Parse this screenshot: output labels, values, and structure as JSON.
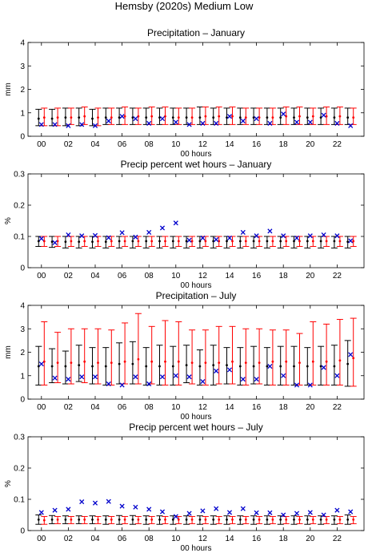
{
  "figure": {
    "title": "Hemsby (2020s) Medium Low"
  },
  "chart_data": [
    {
      "type": "errorbar",
      "title": "Precipitation – January",
      "xlabel": "00 hours",
      "ylabel": "mm",
      "xlim": [
        -1,
        24
      ],
      "ylim": [
        0,
        4
      ],
      "yticks": [
        0,
        1,
        2,
        3,
        4
      ],
      "yticklabels": [
        "0",
        "1",
        "2",
        "3",
        "4"
      ],
      "xticks": [
        0,
        2,
        4,
        6,
        8,
        10,
        12,
        14,
        16,
        18,
        20,
        22
      ],
      "xticklabels": [
        "00",
        "02",
        "04",
        "06",
        "08",
        "10",
        "12",
        "14",
        "16",
        "18",
        "20",
        "22"
      ],
      "hours": [
        0,
        1,
        2,
        3,
        4,
        5,
        6,
        7,
        8,
        9,
        10,
        11,
        12,
        13,
        14,
        15,
        16,
        17,
        18,
        19,
        20,
        21,
        22,
        23
      ],
      "series": [
        {
          "name": "",
          "color": "#000000",
          "marker": "dot",
          "center": [
            0.75,
            0.75,
            0.8,
            0.8,
            0.75,
            0.8,
            0.8,
            0.8,
            0.8,
            0.8,
            0.8,
            0.8,
            0.8,
            0.8,
            0.8,
            0.8,
            0.8,
            0.8,
            0.8,
            0.8,
            0.8,
            0.8,
            0.8,
            0.8
          ],
          "low": [
            0.45,
            0.45,
            0.45,
            0.45,
            0.45,
            0.5,
            0.5,
            0.5,
            0.5,
            0.5,
            0.5,
            0.5,
            0.5,
            0.5,
            0.5,
            0.5,
            0.5,
            0.5,
            0.5,
            0.5,
            0.5,
            0.5,
            0.5,
            0.5
          ],
          "high": [
            1.15,
            1.15,
            1.2,
            1.2,
            1.15,
            1.2,
            1.2,
            1.2,
            1.2,
            1.2,
            1.2,
            1.2,
            1.25,
            1.2,
            1.2,
            1.2,
            1.2,
            1.2,
            1.2,
            1.2,
            1.2,
            1.2,
            1.2,
            1.2
          ]
        },
        {
          "name": "",
          "color": "#ff0000",
          "marker": "dot",
          "center": [
            0.8,
            0.8,
            0.8,
            0.85,
            0.8,
            0.8,
            0.85,
            0.85,
            0.85,
            0.85,
            0.8,
            0.8,
            0.85,
            0.85,
            0.85,
            0.8,
            0.8,
            0.8,
            0.85,
            0.85,
            0.85,
            0.85,
            0.85,
            0.8
          ],
          "low": [
            0.45,
            0.45,
            0.5,
            0.5,
            0.45,
            0.5,
            0.5,
            0.5,
            0.5,
            0.5,
            0.5,
            0.5,
            0.5,
            0.5,
            0.5,
            0.5,
            0.5,
            0.5,
            0.5,
            0.5,
            0.5,
            0.5,
            0.5,
            0.5
          ],
          "high": [
            1.2,
            1.2,
            1.2,
            1.25,
            1.2,
            1.2,
            1.25,
            1.2,
            1.25,
            1.25,
            1.2,
            1.2,
            1.25,
            1.25,
            1.25,
            1.2,
            1.2,
            1.2,
            1.25,
            1.25,
            1.2,
            1.25,
            1.25,
            1.2
          ]
        },
        {
          "name": "",
          "color": "#0000cc",
          "marker": "x",
          "values": [
            0.5,
            0.5,
            0.45,
            0.5,
            0.45,
            0.65,
            0.85,
            0.75,
            0.55,
            0.75,
            0.6,
            0.5,
            0.55,
            0.55,
            0.85,
            0.65,
            0.75,
            0.55,
            0.95,
            0.6,
            0.6,
            0.9,
            0.55,
            0.45
          ]
        }
      ]
    },
    {
      "type": "errorbar",
      "title": "Precip percent wet hours – January",
      "xlabel": "00 hours",
      "ylabel": "%",
      "xlim": [
        -1,
        24
      ],
      "ylim": [
        0,
        0.3
      ],
      "yticks": [
        0,
        0.1,
        0.2,
        0.3
      ],
      "yticklabels": [
        "0",
        "0.1",
        "0.2",
        "0.3"
      ],
      "xticks": [
        0,
        2,
        4,
        6,
        8,
        10,
        12,
        14,
        16,
        18,
        20,
        22
      ],
      "xticklabels": [
        "00",
        "02",
        "04",
        "06",
        "08",
        "10",
        "12",
        "14",
        "16",
        "18",
        "20",
        "22"
      ],
      "hours": [
        0,
        1,
        2,
        3,
        4,
        5,
        6,
        7,
        8,
        9,
        10,
        11,
        12,
        13,
        14,
        15,
        16,
        17,
        18,
        19,
        20,
        21,
        22,
        23
      ],
      "series": [
        {
          "name": "",
          "color": "#000000",
          "marker": "dot",
          "center": [
            0.085,
            0.083,
            0.083,
            0.083,
            0.083,
            0.083,
            0.085,
            0.085,
            0.085,
            0.085,
            0.085,
            0.085,
            0.085,
            0.085,
            0.085,
            0.085,
            0.085,
            0.085,
            0.085,
            0.085,
            0.085,
            0.085,
            0.085,
            0.083
          ],
          "low": [
            0.068,
            0.065,
            0.063,
            0.063,
            0.063,
            0.063,
            0.063,
            0.063,
            0.063,
            0.063,
            0.063,
            0.063,
            0.063,
            0.063,
            0.063,
            0.063,
            0.063,
            0.063,
            0.063,
            0.063,
            0.063,
            0.063,
            0.063,
            0.063
          ],
          "high": [
            0.1,
            0.1,
            0.1,
            0.1,
            0.1,
            0.1,
            0.1,
            0.1,
            0.1,
            0.1,
            0.1,
            0.1,
            0.1,
            0.1,
            0.1,
            0.1,
            0.1,
            0.1,
            0.1,
            0.1,
            0.1,
            0.1,
            0.1,
            0.1
          ]
        },
        {
          "name": "",
          "color": "#ff0000",
          "marker": "dot",
          "center": [
            0.085,
            0.085,
            0.085,
            0.085,
            0.085,
            0.085,
            0.085,
            0.085,
            0.085,
            0.085,
            0.085,
            0.085,
            0.085,
            0.085,
            0.085,
            0.085,
            0.085,
            0.085,
            0.085,
            0.085,
            0.085,
            0.085,
            0.085,
            0.085
          ],
          "low": [
            0.068,
            0.068,
            0.068,
            0.068,
            0.068,
            0.068,
            0.068,
            0.068,
            0.068,
            0.068,
            0.068,
            0.068,
            0.068,
            0.068,
            0.068,
            0.068,
            0.068,
            0.068,
            0.068,
            0.068,
            0.068,
            0.068,
            0.068,
            0.068
          ],
          "high": [
            0.1,
            0.1,
            0.1,
            0.1,
            0.1,
            0.1,
            0.1,
            0.1,
            0.1,
            0.1,
            0.1,
            0.1,
            0.1,
            0.1,
            0.1,
            0.1,
            0.1,
            0.1,
            0.1,
            0.1,
            0.1,
            0.1,
            0.1,
            0.1
          ]
        },
        {
          "name": "",
          "color": "#0000cc",
          "marker": "x",
          "values": [
            0.093,
            0.08,
            0.105,
            0.102,
            0.103,
            0.096,
            0.112,
            0.098,
            0.113,
            0.127,
            0.143,
            0.088,
            0.095,
            0.09,
            0.095,
            0.113,
            0.102,
            0.117,
            0.102,
            0.095,
            0.102,
            0.105,
            0.102,
            0.086
          ]
        }
      ]
    },
    {
      "type": "errorbar",
      "title": "Precipitation – July",
      "xlabel": "00 hours",
      "ylabel": "mm",
      "xlim": [
        -1,
        24
      ],
      "ylim": [
        0,
        4
      ],
      "yticks": [
        0,
        1,
        2,
        3,
        4
      ],
      "yticklabels": [
        "0",
        "1",
        "2",
        "3",
        "4"
      ],
      "xticks": [
        0,
        2,
        4,
        6,
        8,
        10,
        12,
        14,
        16,
        18,
        20,
        22
      ],
      "xticklabels": [
        "00",
        "02",
        "04",
        "06",
        "08",
        "10",
        "12",
        "14",
        "16",
        "18",
        "20",
        "22"
      ],
      "hours": [
        0,
        1,
        2,
        3,
        4,
        5,
        6,
        7,
        8,
        9,
        10,
        11,
        12,
        13,
        14,
        15,
        16,
        17,
        18,
        19,
        20,
        21,
        22,
        23
      ],
      "series": [
        {
          "name": "",
          "color": "#000000",
          "marker": "dot",
          "center": [
            1.4,
            1.4,
            1.4,
            1.45,
            1.4,
            1.4,
            1.5,
            1.5,
            1.4,
            1.4,
            1.4,
            1.45,
            1.4,
            1.45,
            1.45,
            1.4,
            1.4,
            1.4,
            1.4,
            1.4,
            1.4,
            1.4,
            1.4,
            1.5
          ],
          "low": [
            0.6,
            0.7,
            0.65,
            0.75,
            0.65,
            0.6,
            0.65,
            0.65,
            0.6,
            0.6,
            0.6,
            0.7,
            0.6,
            0.6,
            0.65,
            0.6,
            0.65,
            0.6,
            0.6,
            0.6,
            0.6,
            0.6,
            0.6,
            0.55
          ],
          "high": [
            2.25,
            2.15,
            2.05,
            2.3,
            2.2,
            2.2,
            2.4,
            2.45,
            2.2,
            2.3,
            2.25,
            2.3,
            2.1,
            2.3,
            2.2,
            2.2,
            2.25,
            2.2,
            2.25,
            2.25,
            2.2,
            2.25,
            2.3,
            2.5
          ]
        },
        {
          "name": "",
          "color": "#ff0000",
          "marker": "dot",
          "center": [
            1.6,
            1.55,
            1.55,
            1.6,
            1.55,
            1.55,
            1.6,
            1.7,
            1.6,
            1.6,
            1.6,
            1.55,
            1.55,
            1.55,
            1.6,
            1.55,
            1.55,
            1.6,
            1.6,
            1.55,
            1.6,
            1.6,
            1.65,
            1.75
          ],
          "low": [
            0.6,
            0.7,
            0.65,
            0.7,
            0.65,
            0.6,
            0.65,
            0.65,
            0.65,
            0.6,
            0.6,
            0.65,
            0.6,
            0.65,
            0.65,
            0.6,
            0.65,
            0.6,
            0.6,
            0.6,
            0.6,
            0.6,
            0.6,
            0.55
          ],
          "high": [
            3.3,
            2.85,
            3.0,
            3.0,
            3.0,
            2.95,
            3.25,
            3.65,
            3.1,
            3.35,
            3.3,
            2.95,
            2.95,
            3.1,
            3.1,
            3.0,
            3.0,
            2.95,
            2.95,
            2.8,
            3.3,
            3.2,
            3.4,
            3.45
          ]
        },
        {
          "name": "",
          "color": "#0000cc",
          "marker": "x",
          "values": [
            1.5,
            0.9,
            0.85,
            0.95,
            0.95,
            0.65,
            0.6,
            0.95,
            0.65,
            0.95,
            1.0,
            0.95,
            0.75,
            1.2,
            1.25,
            0.85,
            0.85,
            1.4,
            1.0,
            0.6,
            0.6,
            1.35,
            1.0,
            1.9
          ]
        }
      ]
    },
    {
      "type": "errorbar",
      "title": "Precip percent wet hours – July",
      "xlabel": "00 hours",
      "ylabel": "%",
      "xlim": [
        -1,
        24
      ],
      "ylim": [
        0,
        0.3
      ],
      "yticks": [
        0,
        0.1,
        0.2,
        0.3
      ],
      "yticklabels": [
        "0",
        "0.1",
        "0.2",
        "0.3"
      ],
      "xticks": [
        0,
        2,
        4,
        6,
        8,
        10,
        12,
        14,
        16,
        18,
        20,
        22
      ],
      "xticklabels": [
        "00",
        "02",
        "04",
        "06",
        "08",
        "10",
        "12",
        "14",
        "16",
        "18",
        "20",
        "22"
      ],
      "hours": [
        0,
        1,
        2,
        3,
        4,
        5,
        6,
        7,
        8,
        9,
        10,
        11,
        12,
        13,
        14,
        15,
        16,
        17,
        18,
        19,
        20,
        21,
        22,
        23
      ],
      "series": [
        {
          "name": "",
          "color": "#000000",
          "marker": "dot",
          "center": [
            0.035,
            0.035,
            0.035,
            0.035,
            0.035,
            0.035,
            0.035,
            0.035,
            0.035,
            0.035,
            0.035,
            0.035,
            0.035,
            0.035,
            0.035,
            0.035,
            0.035,
            0.035,
            0.035,
            0.035,
            0.035,
            0.035,
            0.035,
            0.035
          ],
          "low": [
            0.02,
            0.022,
            0.022,
            0.022,
            0.022,
            0.02,
            0.02,
            0.02,
            0.02,
            0.02,
            0.02,
            0.02,
            0.02,
            0.02,
            0.02,
            0.02,
            0.02,
            0.02,
            0.02,
            0.02,
            0.02,
            0.02,
            0.02,
            0.02
          ],
          "high": [
            0.05,
            0.048,
            0.047,
            0.047,
            0.047,
            0.047,
            0.048,
            0.048,
            0.047,
            0.047,
            0.047,
            0.047,
            0.047,
            0.047,
            0.047,
            0.047,
            0.047,
            0.047,
            0.047,
            0.047,
            0.047,
            0.047,
            0.047,
            0.05
          ]
        },
        {
          "name": "",
          "color": "#ff0000",
          "marker": "dot",
          "center": [
            0.033,
            0.035,
            0.035,
            0.035,
            0.035,
            0.035,
            0.035,
            0.035,
            0.035,
            0.035,
            0.035,
            0.035,
            0.035,
            0.035,
            0.035,
            0.035,
            0.035,
            0.035,
            0.035,
            0.035,
            0.035,
            0.035,
            0.035,
            0.035
          ],
          "low": [
            0.02,
            0.022,
            0.022,
            0.022,
            0.022,
            0.022,
            0.022,
            0.022,
            0.022,
            0.022,
            0.022,
            0.022,
            0.022,
            0.022,
            0.022,
            0.022,
            0.022,
            0.022,
            0.022,
            0.022,
            0.022,
            0.022,
            0.022,
            0.022
          ],
          "high": [
            0.045,
            0.045,
            0.045,
            0.045,
            0.045,
            0.045,
            0.045,
            0.045,
            0.045,
            0.045,
            0.045,
            0.045,
            0.045,
            0.045,
            0.045,
            0.045,
            0.045,
            0.045,
            0.045,
            0.045,
            0.045,
            0.045,
            0.045,
            0.045
          ]
        },
        {
          "name": "",
          "color": "#0000cc",
          "marker": "x",
          "values": [
            0.058,
            0.065,
            0.068,
            0.092,
            0.088,
            0.093,
            0.078,
            0.075,
            0.068,
            0.06,
            0.045,
            0.055,
            0.063,
            0.07,
            0.058,
            0.07,
            0.057,
            0.057,
            0.05,
            0.055,
            0.058,
            0.05,
            0.065,
            0.06
          ]
        }
      ]
    }
  ]
}
